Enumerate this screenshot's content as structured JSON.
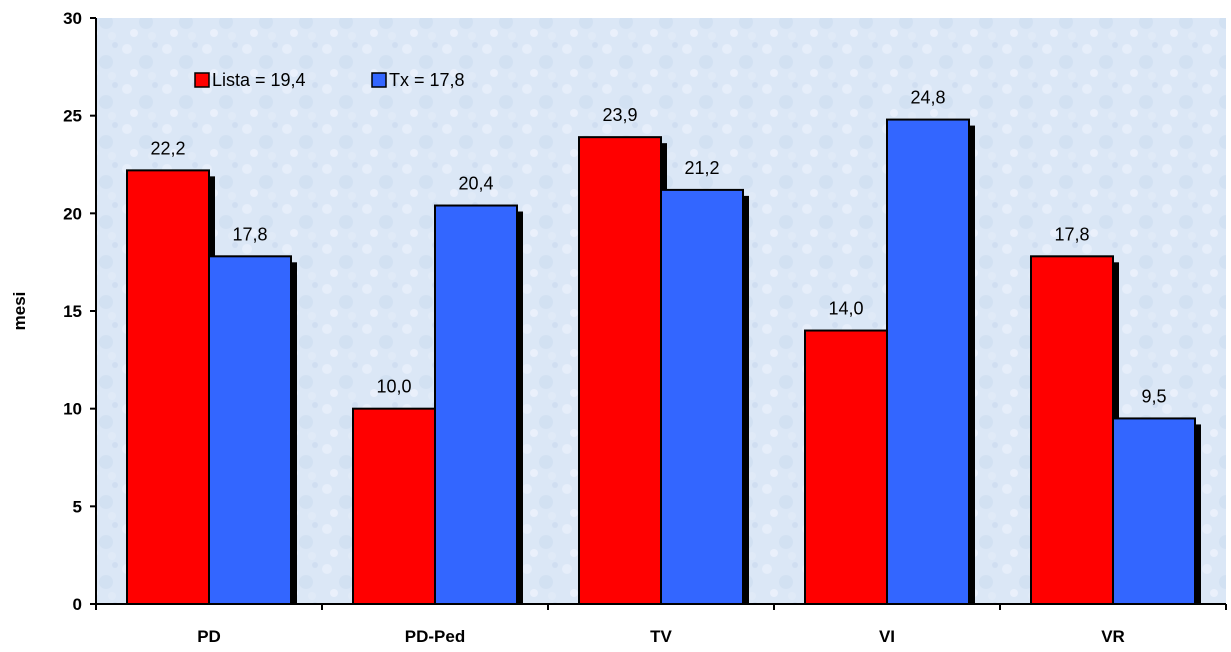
{
  "chart_data": {
    "type": "bar",
    "title": "",
    "xlabel": "",
    "ylabel": "mesi",
    "ylim": [
      0,
      30
    ],
    "yticks": [
      0,
      5,
      10,
      15,
      20,
      25,
      30
    ],
    "categories": [
      "PD",
      "PD-Ped",
      "TV",
      "VI",
      "VR"
    ],
    "series": [
      {
        "name": "Lista = 19,4",
        "color": "#ff0000",
        "values": [
          22.2,
          10.0,
          23.9,
          14.0,
          17.8
        ],
        "labels": [
          "22,2",
          "10,0",
          "23,9",
          "14,0",
          "17,8"
        ]
      },
      {
        "name": "Tx = 17,8",
        "color": "#3366ff",
        "values": [
          17.8,
          20.4,
          21.2,
          24.8,
          9.5
        ],
        "labels": [
          "17,8",
          "20,4",
          "21,2",
          "24,8",
          "9,5"
        ]
      }
    ],
    "legend_position": "top-left",
    "grid": false,
    "plot_background": "light blue texture"
  }
}
